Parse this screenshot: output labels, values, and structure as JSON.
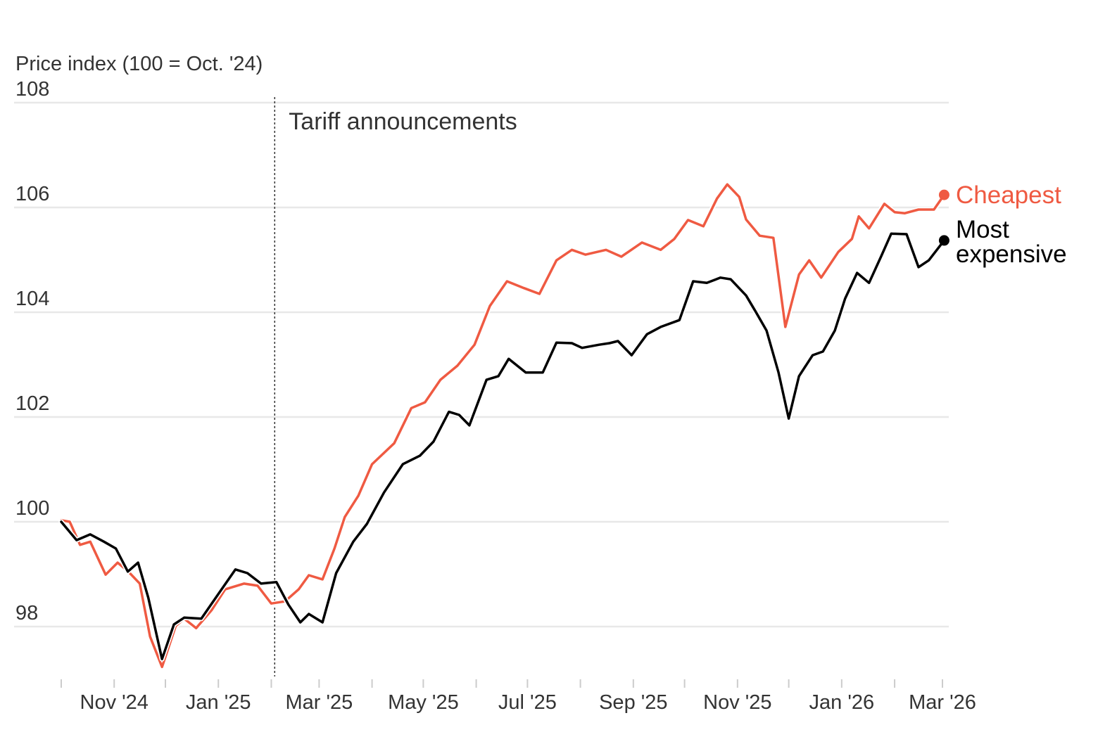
{
  "chart_data": {
    "type": "line",
    "title": "",
    "ylabel": "Price index (100 = Oct. '24)",
    "xlabel": "",
    "ylim": [
      97,
      108
    ],
    "yticks": [
      98,
      100,
      102,
      104,
      106,
      108
    ],
    "xlim": [
      "2024-10-01",
      "2026-03-01"
    ],
    "xticks": [
      {
        "date": "2024-10-01",
        "label": ""
      },
      {
        "date": "2024-11-01",
        "label": "Nov '24"
      },
      {
        "date": "2024-12-01",
        "label": ""
      },
      {
        "date": "2025-01-01",
        "label": "Jan '25"
      },
      {
        "date": "2025-02-01",
        "label": ""
      },
      {
        "date": "2025-03-01",
        "label": "Mar '25"
      },
      {
        "date": "2025-04-01",
        "label": ""
      },
      {
        "date": "2025-05-01",
        "label": "May '25"
      },
      {
        "date": "2025-06-01",
        "label": ""
      },
      {
        "date": "2025-07-01",
        "label": "Jul '25"
      },
      {
        "date": "2025-08-01",
        "label": ""
      },
      {
        "date": "2025-09-01",
        "label": "Sep '25"
      },
      {
        "date": "2025-10-01",
        "label": ""
      },
      {
        "date": "2025-11-01",
        "label": "Nov '25"
      },
      {
        "date": "2025-12-01",
        "label": ""
      },
      {
        "date": "2026-01-01",
        "label": "Jan '26"
      },
      {
        "date": "2026-02-01",
        "label": ""
      },
      {
        "date": "2026-03-01",
        "label": "Mar '26"
      }
    ],
    "grid": true,
    "annotation": {
      "date": "2025-02-03",
      "label": "Tariff announcements"
    },
    "series": [
      {
        "name": "Cheapest",
        "color": "#ef5a42",
        "points": [
          [
            "2024-10-01",
            100.03
          ],
          [
            "2024-10-06",
            100.0
          ],
          [
            "2024-10-12",
            99.56
          ],
          [
            "2024-10-18",
            99.62
          ],
          [
            "2024-10-27",
            98.99
          ],
          [
            "2024-11-03",
            99.22
          ],
          [
            "2024-11-09",
            99.06
          ],
          [
            "2024-11-16",
            98.82
          ],
          [
            "2024-11-22",
            97.81
          ],
          [
            "2024-11-29",
            97.23
          ],
          [
            "2024-12-07",
            98.01
          ],
          [
            "2024-12-12",
            98.15
          ],
          [
            "2024-12-19",
            97.97
          ],
          [
            "2024-12-28",
            98.31
          ],
          [
            "2025-01-05",
            98.71
          ],
          [
            "2025-01-16",
            98.82
          ],
          [
            "2025-01-24",
            98.78
          ],
          [
            "2025-02-01",
            98.44
          ],
          [
            "2025-02-09",
            98.48
          ],
          [
            "2025-02-17",
            98.71
          ],
          [
            "2025-02-23",
            98.98
          ],
          [
            "2025-03-03",
            98.9
          ],
          [
            "2025-03-10",
            99.49
          ],
          [
            "2025-03-16",
            100.09
          ],
          [
            "2025-03-24",
            100.5
          ],
          [
            "2025-04-01",
            101.1
          ],
          [
            "2025-04-14",
            101.5
          ],
          [
            "2025-04-24",
            102.17
          ],
          [
            "2025-05-02",
            102.28
          ],
          [
            "2025-05-11",
            102.71
          ],
          [
            "2025-05-21",
            102.98
          ],
          [
            "2025-05-31",
            103.38
          ],
          [
            "2025-06-09",
            104.12
          ],
          [
            "2025-06-19",
            104.59
          ],
          [
            "2025-06-29",
            104.46
          ],
          [
            "2025-07-08",
            104.35
          ],
          [
            "2025-07-18",
            104.99
          ],
          [
            "2025-07-27",
            105.19
          ],
          [
            "2025-08-04",
            105.1
          ],
          [
            "2025-08-16",
            105.19
          ],
          [
            "2025-08-25",
            105.06
          ],
          [
            "2025-09-06",
            105.33
          ],
          [
            "2025-09-17",
            105.19
          ],
          [
            "2025-09-25",
            105.4
          ],
          [
            "2025-10-03",
            105.76
          ],
          [
            "2025-10-12",
            105.64
          ],
          [
            "2025-10-20",
            106.17
          ],
          [
            "2025-10-26",
            106.44
          ],
          [
            "2025-11-02",
            106.2
          ],
          [
            "2025-11-06",
            105.77
          ],
          [
            "2025-11-14",
            105.46
          ],
          [
            "2025-11-22",
            105.42
          ],
          [
            "2025-11-29",
            103.72
          ],
          [
            "2025-12-07",
            104.72
          ],
          [
            "2025-12-13",
            104.99
          ],
          [
            "2025-12-20",
            104.66
          ],
          [
            "2025-12-30",
            105.15
          ],
          [
            "2026-01-07",
            105.4
          ],
          [
            "2026-01-11",
            105.83
          ],
          [
            "2026-01-17",
            105.6
          ],
          [
            "2026-01-26",
            106.07
          ],
          [
            "2026-02-01",
            105.91
          ],
          [
            "2026-02-07",
            105.89
          ],
          [
            "2026-02-15",
            105.96
          ],
          [
            "2026-02-24",
            105.96
          ],
          [
            "2026-03-02",
            106.24
          ]
        ]
      },
      {
        "name": "Most expensive",
        "label_lines": [
          "Most",
          "expensive"
        ],
        "color": "#000000",
        "points": [
          [
            "2024-10-01",
            100.0
          ],
          [
            "2024-10-10",
            99.65
          ],
          [
            "2024-10-18",
            99.76
          ],
          [
            "2024-10-26",
            99.62
          ],
          [
            "2024-11-02",
            99.49
          ],
          [
            "2024-11-09",
            99.05
          ],
          [
            "2024-11-15",
            99.22
          ],
          [
            "2024-11-21",
            98.55
          ],
          [
            "2024-11-29",
            97.38
          ],
          [
            "2024-12-06",
            98.04
          ],
          [
            "2024-12-12",
            98.17
          ],
          [
            "2024-12-22",
            98.15
          ],
          [
            "2025-01-01",
            98.62
          ],
          [
            "2025-01-11",
            99.09
          ],
          [
            "2025-01-18",
            99.02
          ],
          [
            "2025-01-26",
            98.82
          ],
          [
            "2025-02-04",
            98.85
          ],
          [
            "2025-02-11",
            98.42
          ],
          [
            "2025-02-18",
            98.08
          ],
          [
            "2025-02-23",
            98.24
          ],
          [
            "2025-03-03",
            98.08
          ],
          [
            "2025-03-11",
            99.02
          ],
          [
            "2025-03-21",
            99.62
          ],
          [
            "2025-03-29",
            99.96
          ],
          [
            "2025-04-08",
            100.56
          ],
          [
            "2025-04-19",
            101.1
          ],
          [
            "2025-04-29",
            101.26
          ],
          [
            "2025-05-07",
            101.53
          ],
          [
            "2025-05-16",
            102.1
          ],
          [
            "2025-05-22",
            102.04
          ],
          [
            "2025-05-28",
            101.84
          ],
          [
            "2025-06-07",
            102.71
          ],
          [
            "2025-06-14",
            102.78
          ],
          [
            "2025-06-20",
            103.11
          ],
          [
            "2025-06-30",
            102.85
          ],
          [
            "2025-07-10",
            102.85
          ],
          [
            "2025-07-18",
            103.42
          ],
          [
            "2025-07-27",
            103.41
          ],
          [
            "2025-08-02",
            103.32
          ],
          [
            "2025-08-12",
            103.38
          ],
          [
            "2025-08-18",
            103.41
          ],
          [
            "2025-08-23",
            103.45
          ],
          [
            "2025-08-31",
            103.18
          ],
          [
            "2025-09-09",
            103.58
          ],
          [
            "2025-09-17",
            103.72
          ],
          [
            "2025-09-28",
            103.85
          ],
          [
            "2025-10-06",
            104.59
          ],
          [
            "2025-10-14",
            104.56
          ],
          [
            "2025-10-22",
            104.66
          ],
          [
            "2025-10-28",
            104.63
          ],
          [
            "2025-11-06",
            104.32
          ],
          [
            "2025-11-12",
            103.99
          ],
          [
            "2025-11-18",
            103.65
          ],
          [
            "2025-11-25",
            102.85
          ],
          [
            "2025-12-01",
            101.97
          ],
          [
            "2025-12-07",
            102.78
          ],
          [
            "2025-12-15",
            103.18
          ],
          [
            "2025-12-21",
            103.25
          ],
          [
            "2025-12-28",
            103.65
          ],
          [
            "2026-01-03",
            104.26
          ],
          [
            "2026-01-10",
            104.75
          ],
          [
            "2026-01-17",
            104.56
          ],
          [
            "2026-01-24",
            105.06
          ],
          [
            "2026-01-30",
            105.5
          ],
          [
            "2026-02-08",
            105.49
          ],
          [
            "2026-02-15",
            104.86
          ],
          [
            "2026-02-21",
            104.99
          ],
          [
            "2026-03-02",
            105.37
          ]
        ]
      }
    ]
  }
}
